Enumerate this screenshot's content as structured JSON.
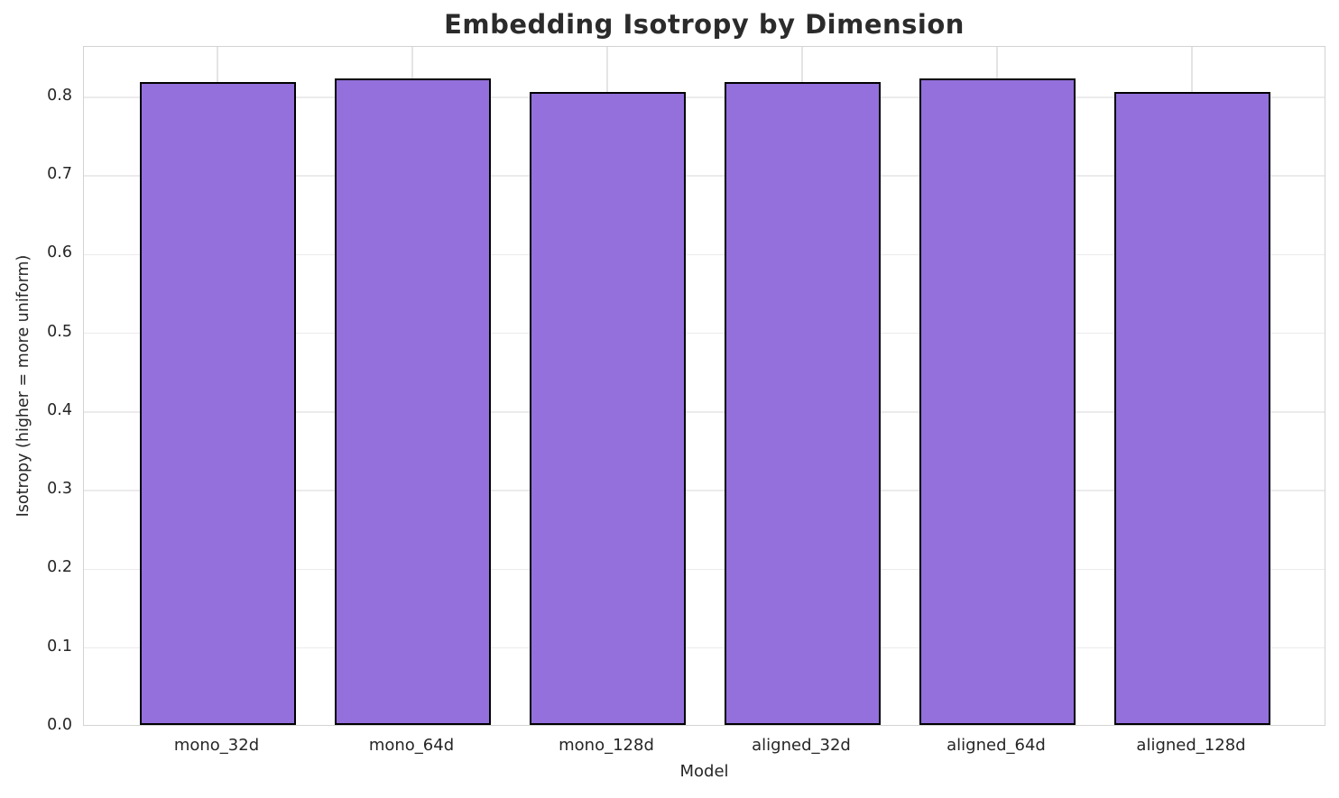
{
  "chart_data": {
    "type": "bar",
    "title": "Embedding Isotropy by Dimension",
    "xlabel": "Model",
    "ylabel": "Isotropy (higher = more uniform)",
    "categories": [
      "mono_32d",
      "mono_64d",
      "mono_128d",
      "aligned_32d",
      "aligned_64d",
      "aligned_128d"
    ],
    "values": [
      0.817,
      0.822,
      0.805,
      0.817,
      0.822,
      0.805
    ],
    "ylim": [
      0,
      0.864
    ],
    "yticks": [
      0.0,
      0.1,
      0.2,
      0.3,
      0.4,
      0.5,
      0.6,
      0.7,
      0.8
    ],
    "grid": true,
    "legend": null,
    "colors": {
      "bar_fill": "#9370DB",
      "bar_edge": "#000000",
      "grid_h": "#ebebeb",
      "grid_v": "#e4e4e4",
      "spine": "#d3d3d3",
      "text": "#262626",
      "title_text": "#2b2b2b",
      "background": "#ffffff"
    }
  }
}
